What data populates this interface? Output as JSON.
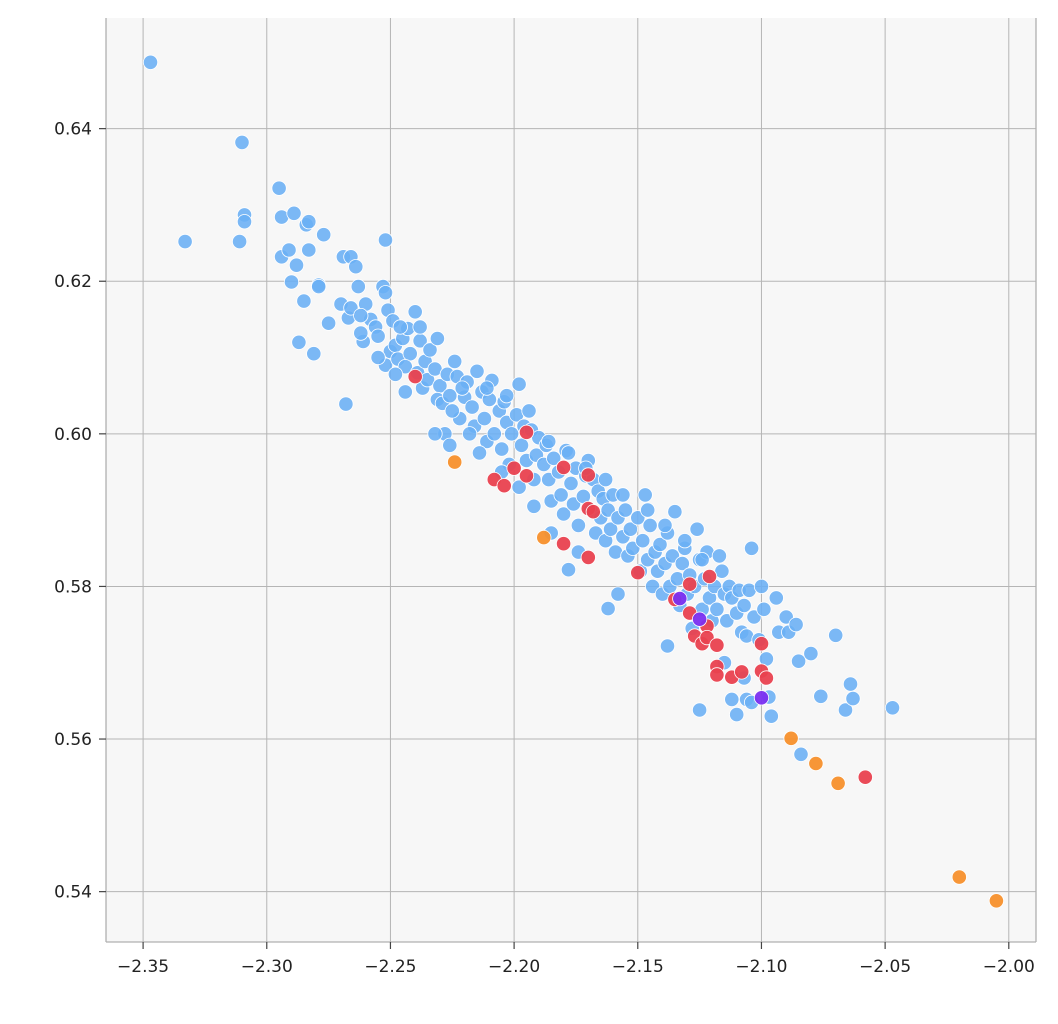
{
  "chart_data": {
    "type": "scatter",
    "title": "",
    "xlabel": "",
    "ylabel": "",
    "xlim": [
      -2.365,
      -1.989
    ],
    "ylim": [
      0.5334,
      0.6545
    ],
    "x_ticks": [
      -2.35,
      -2.3,
      -2.25,
      -2.2,
      -2.15,
      -2.1,
      -2.05,
      -2.0
    ],
    "x_tick_labels": [
      "−2.35",
      "−2.30",
      "−2.25",
      "−2.20",
      "−2.15",
      "−2.10",
      "−2.05",
      "−2.00"
    ],
    "y_ticks": [
      0.54,
      0.56,
      0.58,
      0.6,
      0.62,
      0.64
    ],
    "y_tick_labels": [
      "0.54",
      "0.56",
      "0.58",
      "0.60",
      "0.62",
      "0.64"
    ],
    "grid": true,
    "legend": "none",
    "colors": {
      "background": "#f7f7f7",
      "blue": "#6aaff5",
      "red": "#e9414f",
      "orange": "#f7902c",
      "purple": "#7b2ff0"
    },
    "series": [
      {
        "color": "blue",
        "points": [
          [
            -2.347,
            0.6487
          ],
          [
            -2.31,
            0.6382
          ],
          [
            -2.333,
            0.6252
          ],
          [
            -2.311,
            0.6252
          ],
          [
            -2.309,
            0.6287
          ],
          [
            -2.309,
            0.6278
          ],
          [
            -2.295,
            0.6322
          ],
          [
            -2.294,
            0.6284
          ],
          [
            -2.294,
            0.6232
          ],
          [
            -2.291,
            0.6241
          ],
          [
            -2.289,
            0.6289
          ],
          [
            -2.288,
            0.6221
          ],
          [
            -2.29,
            0.6199
          ],
          [
            -2.285,
            0.6174
          ],
          [
            -2.284,
            0.6274
          ],
          [
            -2.283,
            0.6278
          ],
          [
            -2.283,
            0.6241
          ],
          [
            -2.287,
            0.612
          ],
          [
            -2.281,
            0.6105
          ],
          [
            -2.279,
            0.6195
          ],
          [
            -2.279,
            0.6193
          ],
          [
            -2.277,
            0.6261
          ],
          [
            -2.275,
            0.6145
          ],
          [
            -2.269,
            0.6232
          ],
          [
            -2.266,
            0.6232
          ],
          [
            -2.264,
            0.6219
          ],
          [
            -2.268,
            0.6039
          ],
          [
            -2.252,
            0.6254
          ],
          [
            -2.27,
            0.617
          ],
          [
            -2.267,
            0.6152
          ],
          [
            -2.266,
            0.6165
          ],
          [
            -2.263,
            0.6193
          ],
          [
            -2.26,
            0.617
          ],
          [
            -2.258,
            0.615
          ],
          [
            -2.261,
            0.6121
          ],
          [
            -2.262,
            0.6132
          ],
          [
            -2.256,
            0.614
          ],
          [
            -2.255,
            0.6128
          ],
          [
            -2.253,
            0.6193
          ],
          [
            -2.252,
            0.6185
          ],
          [
            -2.251,
            0.6162
          ],
          [
            -2.249,
            0.6148
          ],
          [
            -2.252,
            0.609
          ],
          [
            -2.25,
            0.6108
          ],
          [
            -2.248,
            0.6116
          ],
          [
            -2.247,
            0.6098
          ],
          [
            -2.245,
            0.6125
          ],
          [
            -2.243,
            0.6138
          ],
          [
            -2.242,
            0.6105
          ],
          [
            -2.244,
            0.6088
          ],
          [
            -2.24,
            0.616
          ],
          [
            -2.238,
            0.6122
          ],
          [
            -2.239,
            0.608
          ],
          [
            -2.236,
            0.6095
          ],
          [
            -2.237,
            0.606
          ],
          [
            -2.235,
            0.6071
          ],
          [
            -2.234,
            0.611
          ],
          [
            -2.232,
            0.6085
          ],
          [
            -2.23,
            0.6063
          ],
          [
            -2.231,
            0.6045
          ],
          [
            -2.229,
            0.604
          ],
          [
            -2.227,
            0.6078
          ],
          [
            -2.226,
            0.605
          ],
          [
            -2.224,
            0.6095
          ],
          [
            -2.223,
            0.6075
          ],
          [
            -2.222,
            0.602
          ],
          [
            -2.228,
            0.6
          ],
          [
            -2.225,
            0.603
          ],
          [
            -2.22,
            0.6048
          ],
          [
            -2.219,
            0.6068
          ],
          [
            -2.217,
            0.6035
          ],
          [
            -2.216,
            0.601
          ],
          [
            -2.215,
            0.6082
          ],
          [
            -2.213,
            0.6055
          ],
          [
            -2.212,
            0.602
          ],
          [
            -2.21,
            0.6045
          ],
          [
            -2.209,
            0.607
          ],
          [
            -2.211,
            0.599
          ],
          [
            -2.214,
            0.5975
          ],
          [
            -2.208,
            0.6
          ],
          [
            -2.206,
            0.603
          ],
          [
            -2.204,
            0.6042
          ],
          [
            -2.203,
            0.6015
          ],
          [
            -2.205,
            0.598
          ],
          [
            -2.202,
            0.596
          ],
          [
            -2.201,
            0.6
          ],
          [
            -2.199,
            0.6025
          ],
          [
            -2.198,
            0.6065
          ],
          [
            -2.196,
            0.601
          ],
          [
            -2.197,
            0.5985
          ],
          [
            -2.195,
            0.5965
          ],
          [
            -2.193,
            0.6005
          ],
          [
            -2.192,
            0.594
          ],
          [
            -2.191,
            0.5972
          ],
          [
            -2.19,
            0.5995
          ],
          [
            -2.188,
            0.596
          ],
          [
            -2.187,
            0.5985
          ],
          [
            -2.186,
            0.594
          ],
          [
            -2.185,
            0.5912
          ],
          [
            -2.184,
            0.5968
          ],
          [
            -2.182,
            0.595
          ],
          [
            -2.181,
            0.592
          ],
          [
            -2.18,
            0.5895
          ],
          [
            -2.179,
            0.5978
          ],
          [
            -2.177,
            0.5935
          ],
          [
            -2.176,
            0.5908
          ],
          [
            -2.175,
            0.5955
          ],
          [
            -2.174,
            0.588
          ],
          [
            -2.172,
            0.5918
          ],
          [
            -2.171,
            0.5945
          ],
          [
            -2.17,
            0.5965
          ],
          [
            -2.169,
            0.59
          ],
          [
            -2.168,
            0.594
          ],
          [
            -2.167,
            0.587
          ],
          [
            -2.166,
            0.5925
          ],
          [
            -2.165,
            0.589
          ],
          [
            -2.164,
            0.5915
          ],
          [
            -2.163,
            0.586
          ],
          [
            -2.162,
            0.59
          ],
          [
            -2.161,
            0.5875
          ],
          [
            -2.16,
            0.592
          ],
          [
            -2.159,
            0.5845
          ],
          [
            -2.158,
            0.589
          ],
          [
            -2.156,
            0.5865
          ],
          [
            -2.155,
            0.59
          ],
          [
            -2.154,
            0.584
          ],
          [
            -2.153,
            0.5875
          ],
          [
            -2.152,
            0.585
          ],
          [
            -2.15,
            0.589
          ],
          [
            -2.149,
            0.582
          ],
          [
            -2.148,
            0.586
          ],
          [
            -2.147,
            0.592
          ],
          [
            -2.146,
            0.5835
          ],
          [
            -2.145,
            0.588
          ],
          [
            -2.144,
            0.58
          ],
          [
            -2.143,
            0.5845
          ],
          [
            -2.142,
            0.582
          ],
          [
            -2.141,
            0.5855
          ],
          [
            -2.14,
            0.579
          ],
          [
            -2.139,
            0.583
          ],
          [
            -2.138,
            0.587
          ],
          [
            -2.137,
            0.58
          ],
          [
            -2.136,
            0.584
          ],
          [
            -2.135,
            0.5898
          ],
          [
            -2.134,
            0.581
          ],
          [
            -2.133,
            0.5775
          ],
          [
            -2.132,
            0.583
          ],
          [
            -2.131,
            0.585
          ],
          [
            -2.13,
            0.579
          ],
          [
            -2.129,
            0.5815
          ],
          [
            -2.128,
            0.5745
          ],
          [
            -2.127,
            0.58
          ],
          [
            -2.126,
            0.5875
          ],
          [
            -2.125,
            0.5835
          ],
          [
            -2.124,
            0.577
          ],
          [
            -2.123,
            0.581
          ],
          [
            -2.122,
            0.5845
          ],
          [
            -2.121,
            0.5785
          ],
          [
            -2.12,
            0.5755
          ],
          [
            -2.119,
            0.58
          ],
          [
            -2.118,
            0.577
          ],
          [
            -2.116,
            0.582
          ],
          [
            -2.115,
            0.579
          ],
          [
            -2.114,
            0.5755
          ],
          [
            -2.113,
            0.58
          ],
          [
            -2.112,
            0.5785
          ],
          [
            -2.11,
            0.5765
          ],
          [
            -2.109,
            0.5795
          ],
          [
            -2.108,
            0.574
          ],
          [
            -2.107,
            0.5775
          ],
          [
            -2.106,
            0.5735
          ],
          [
            -2.105,
            0.5795
          ],
          [
            -2.104,
            0.585
          ],
          [
            -2.103,
            0.576
          ],
          [
            -2.101,
            0.573
          ],
          [
            -2.1,
            0.58
          ],
          [
            -2.099,
            0.577
          ],
          [
            -2.098,
            0.5705
          ],
          [
            -2.097,
            0.5655
          ],
          [
            -2.096,
            0.563
          ],
          [
            -2.094,
            0.5785
          ],
          [
            -2.093,
            0.574
          ],
          [
            -2.09,
            0.576
          ],
          [
            -2.089,
            0.574
          ],
          [
            -2.086,
            0.575
          ],
          [
            -2.085,
            0.5702
          ],
          [
            -2.084,
            0.558
          ],
          [
            -2.08,
            0.5712
          ],
          [
            -2.076,
            0.5656
          ],
          [
            -2.07,
            0.5736
          ],
          [
            -2.066,
            0.5638
          ],
          [
            -2.064,
            0.5672
          ],
          [
            -2.063,
            0.5653
          ],
          [
            -2.047,
            0.5641
          ],
          [
            -2.125,
            0.5638
          ],
          [
            -2.112,
            0.5652
          ],
          [
            -2.11,
            0.5632
          ],
          [
            -2.106,
            0.5652
          ],
          [
            -2.104,
            0.5648
          ],
          [
            -2.107,
            0.568
          ],
          [
            -2.115,
            0.57
          ],
          [
            -2.162,
            0.5771
          ],
          [
            -2.158,
            0.579
          ],
          [
            -2.138,
            0.5722
          ],
          [
            -2.178,
            0.5822
          ],
          [
            -2.174,
            0.5845
          ],
          [
            -2.185,
            0.587
          ],
          [
            -2.205,
            0.595
          ],
          [
            -2.198,
            0.593
          ],
          [
            -2.192,
            0.5905
          ],
          [
            -2.232,
            0.6
          ],
          [
            -2.226,
            0.5985
          ],
          [
            -2.218,
            0.6
          ],
          [
            -2.244,
            0.6055
          ],
          [
            -2.248,
            0.6078
          ],
          [
            -2.255,
            0.61
          ],
          [
            -2.262,
            0.6155
          ],
          [
            -2.246,
            0.614
          ],
          [
            -2.238,
            0.614
          ],
          [
            -2.231,
            0.6125
          ],
          [
            -2.221,
            0.606
          ],
          [
            -2.211,
            0.606
          ],
          [
            -2.203,
            0.605
          ],
          [
            -2.194,
            0.603
          ],
          [
            -2.186,
            0.599
          ],
          [
            -2.178,
            0.5975
          ],
          [
            -2.171,
            0.5955
          ],
          [
            -2.163,
            0.594
          ],
          [
            -2.156,
            0.592
          ],
          [
            -2.146,
            0.59
          ],
          [
            -2.139,
            0.588
          ],
          [
            -2.131,
            0.586
          ],
          [
            -2.124,
            0.5835
          ],
          [
            -2.117,
            0.584
          ]
        ]
      },
      {
        "color": "red",
        "points": [
          [
            -2.24,
            0.6075
          ],
          [
            -2.195,
            0.6002
          ],
          [
            -2.2,
            0.5955
          ],
          [
            -2.195,
            0.5945
          ],
          [
            -2.208,
            0.594
          ],
          [
            -2.204,
            0.5932
          ],
          [
            -2.18,
            0.5956
          ],
          [
            -2.17,
            0.5946
          ],
          [
            -2.17,
            0.5902
          ],
          [
            -2.168,
            0.5898
          ],
          [
            -2.18,
            0.5856
          ],
          [
            -2.17,
            0.5838
          ],
          [
            -2.15,
            0.5818
          ],
          [
            -2.129,
            0.5803
          ],
          [
            -2.121,
            0.5813
          ],
          [
            -2.135,
            0.5783
          ],
          [
            -2.129,
            0.5765
          ],
          [
            -2.122,
            0.5748
          ],
          [
            -2.127,
            0.5735
          ],
          [
            -2.124,
            0.5725
          ],
          [
            -2.122,
            0.5733
          ],
          [
            -2.118,
            0.5723
          ],
          [
            -2.1,
            0.5725
          ],
          [
            -2.118,
            0.5695
          ],
          [
            -2.112,
            0.5681
          ],
          [
            -2.118,
            0.5684
          ],
          [
            -2.108,
            0.5688
          ],
          [
            -2.1,
            0.5689
          ],
          [
            -2.098,
            0.568
          ],
          [
            -2.058,
            0.555
          ]
        ]
      },
      {
        "color": "orange",
        "points": [
          [
            -2.224,
            0.5963
          ],
          [
            -2.188,
            0.5864
          ],
          [
            -2.088,
            0.5601
          ],
          [
            -2.078,
            0.5568
          ],
          [
            -2.069,
            0.5542
          ],
          [
            -2.02,
            0.5419
          ],
          [
            -2.005,
            0.5388
          ]
        ]
      },
      {
        "color": "purple",
        "points": [
          [
            -2.1,
            0.5654
          ],
          [
            -2.125,
            0.5757
          ],
          [
            -2.133,
            0.5784
          ]
        ]
      }
    ]
  }
}
